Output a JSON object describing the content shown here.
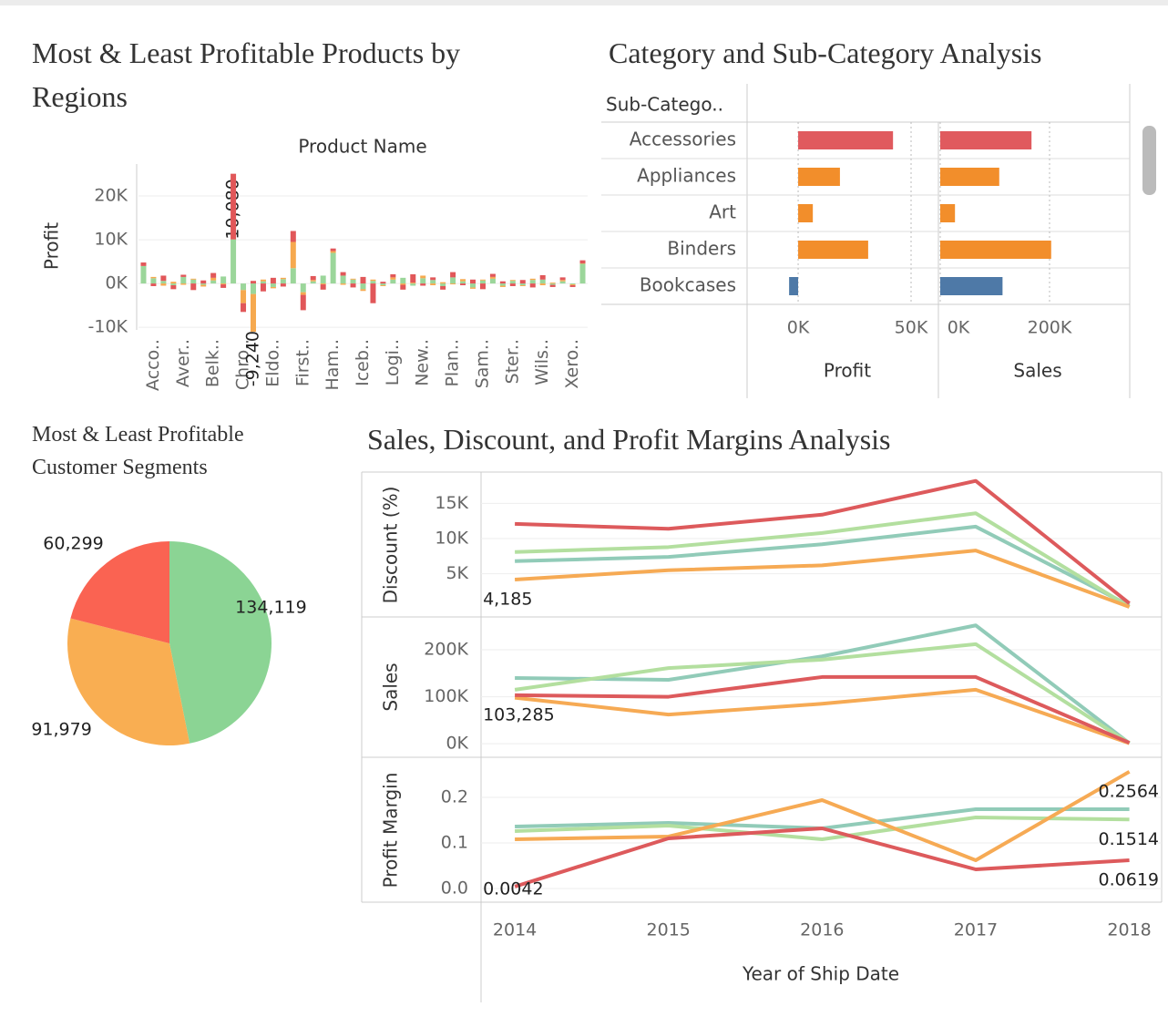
{
  "chart_data": [
    {
      "type": "bar",
      "stacked": true,
      "title": "Most & Least Profitable Products by Regions",
      "x_header": "Product Name",
      "ylabel": "Profit",
      "categories": [
        null,
        "Acco..",
        null,
        null,
        "Aver..",
        null,
        null,
        "Belk..",
        null,
        null,
        "Chro..",
        null,
        null,
        "Eldo..",
        null,
        null,
        "First..",
        null,
        null,
        "Ham..",
        null,
        null,
        "Iceb..",
        null,
        null,
        "Logi..",
        null,
        null,
        "New..",
        null,
        null,
        "Plan..",
        null,
        null,
        "Sam..",
        null,
        null,
        "Ster..",
        null,
        null,
        "Wils..",
        null,
        null,
        "Xero..",
        null
      ],
      "series": [
        {
          "color": "#9bd69a",
          "values": [
            4000,
            1200,
            600,
            -400,
            1500,
            900,
            -300,
            700,
            1600,
            10080,
            -1500,
            -2400,
            500,
            -800,
            1000,
            3500,
            -2000,
            500,
            1800,
            7000,
            1800,
            900,
            -1300,
            600,
            -400,
            900,
            1300,
            -500,
            1200,
            800,
            -600,
            1400,
            500,
            -900,
            700,
            1100,
            -500,
            600,
            -400,
            800,
            900,
            -300,
            500,
            -200,
            4500
          ],
          "value_labels": [
            null,
            null,
            null,
            null,
            null,
            null,
            null,
            null,
            null,
            "10,080",
            null,
            null,
            null,
            null,
            null,
            null,
            null,
            null,
            null,
            null,
            null,
            null,
            null,
            null,
            null,
            null,
            null,
            null,
            null,
            null,
            null,
            null,
            null,
            null,
            null,
            null,
            null,
            null,
            null,
            null,
            null,
            null,
            null,
            null,
            null
          ]
        },
        {
          "color": "#f6a94f",
          "values": [
            0,
            300,
            -500,
            400,
            -300,
            200,
            -400,
            600,
            -200,
            0,
            -3000,
            -9240,
            400,
            -300,
            300,
            6000,
            -600,
            300,
            -200,
            400,
            -300,
            200,
            -400,
            300,
            -200,
            500,
            -300,
            200,
            600,
            -400,
            300,
            -200,
            500,
            -300,
            200,
            400,
            -300,
            200,
            -200,
            300,
            -400,
            200,
            300,
            -200,
            100
          ],
          "value_labels": [
            null,
            null,
            null,
            null,
            null,
            null,
            null,
            null,
            null,
            null,
            null,
            "-9,240",
            null,
            null,
            null,
            null,
            null,
            null,
            null,
            null,
            null,
            null,
            null,
            null,
            null,
            null,
            null,
            null,
            null,
            null,
            null,
            null,
            null,
            null,
            null,
            null,
            null,
            null,
            null,
            null,
            null,
            null,
            null,
            null,
            null
          ]
        },
        {
          "color": "#e15759",
          "values": [
            800,
            -600,
            1200,
            -900,
            500,
            -1500,
            700,
            1100,
            -800,
            15000,
            -2000,
            600,
            -1800,
            1300,
            -700,
            2500,
            -3500,
            900,
            -1200,
            600,
            800,
            -900,
            1500,
            -4500,
            400,
            700,
            -1100,
            1900,
            -500,
            600,
            -800,
            1200,
            -400,
            900,
            -1300,
            700,
            500,
            -600,
            800,
            -900,
            1000,
            -500,
            600,
            -400,
            700
          ]
        }
      ],
      "ylim": [
        -10600,
        27300
      ],
      "yticks": [
        {
          "value": -10000,
          "label": "-10K"
        },
        {
          "value": 0,
          "label": "0K"
        },
        {
          "value": 10000,
          "label": "10K"
        },
        {
          "value": 20000,
          "label": "20K"
        }
      ],
      "grid": true
    },
    {
      "type": "hbar",
      "title": "Category and Sub-Category Analysis",
      "row_header": "Sub-Catego..",
      "categories": [
        "Accessories",
        "Appliances",
        "Art",
        "Binders",
        "Bookcases"
      ],
      "colors": [
        "#e05a5e",
        "#f28e2b",
        "#f28e2b",
        "#f28e2b",
        "#4e79a7"
      ],
      "panels": [
        {
          "xlabel": "Profit",
          "values": [
            42000,
            18500,
            6500,
            31000,
            -4000
          ],
          "xlim": [
            -21800,
            62100
          ],
          "xticks": [
            {
              "value": 0,
              "label": "0K"
            },
            {
              "value": 50000,
              "label": "50K"
            }
          ]
        },
        {
          "xlabel": "Sales",
          "values": [
            167000,
            108000,
            27000,
            203000,
            114000
          ],
          "xlim": [
            -3300,
            346700
          ],
          "xticks": [
            {
              "value": 0,
              "label": "0K"
            },
            {
              "value": 200000,
              "label": "200K"
            }
          ]
        }
      ]
    },
    {
      "type": "pie",
      "title": "Most & Least Profitable Customer Segments",
      "values": [
        134119,
        91979,
        60299
      ],
      "value_labels": [
        "134,119",
        "91,979",
        "60,299"
      ],
      "colors": [
        "#8bd494",
        "#f9ae52",
        "#fa6352"
      ]
    },
    {
      "type": "line",
      "title": "Sales, Discount, and Profit Margins Analysis",
      "x": [
        2014,
        2015,
        2016,
        2017,
        2018
      ],
      "xlim": [
        2013.78,
        2018.21
      ],
      "xticks": [
        2014,
        2015,
        2016,
        2017,
        2018
      ],
      "xlabel": "Year of Ship Date",
      "panels": [
        {
          "ylabel": "Discount (%)",
          "ylim": [
            -1000,
            19200
          ],
          "yticks": [
            {
              "value": 5000,
              "label": "5K"
            },
            {
              "value": 10000,
              "label": "10K"
            },
            {
              "value": 15000,
              "label": "15K"
            }
          ],
          "series": [
            {
              "color": "#91cbb8",
              "values": [
                6800,
                7400,
                9200,
                11700,
                500
              ]
            },
            {
              "color": "#b3df9f",
              "values": [
                8100,
                8800,
                10800,
                13600,
                300
              ]
            },
            {
              "color": "#f6aa54",
              "values": [
                4185,
                5500,
                6200,
                8300,
                300
              ],
              "value_labels": [
                "4,185",
                null,
                null,
                null,
                null
              ]
            },
            {
              "color": "#dd5a5c",
              "values": [
                12100,
                11400,
                13400,
                18200,
                800
              ]
            }
          ]
        },
        {
          "ylabel": "Sales",
          "ylim": [
            -27000,
            268000
          ],
          "yticks": [
            {
              "value": 0,
              "label": "0K"
            },
            {
              "value": 100000,
              "label": "100K"
            },
            {
              "value": 200000,
              "label": "200K"
            }
          ],
          "series": [
            {
              "color": "#91cbb8",
              "values": [
                140000,
                136000,
                186000,
                252000,
                1000
              ]
            },
            {
              "color": "#b3df9f",
              "values": [
                115000,
                161000,
                179000,
                212000,
                1000
              ]
            },
            {
              "color": "#f6aa54",
              "values": [
                98000,
                62000,
                85000,
                115000,
                1000
              ]
            },
            {
              "color": "#dd5a5c",
              "values": [
                103285,
                100000,
                142000,
                142000,
                2000
              ],
              "value_labels": [
                "103,285",
                null,
                null,
                null,
                null
              ]
            }
          ]
        },
        {
          "ylabel": "Profit Margin",
          "ylim": [
            -0.03,
            0.286
          ],
          "yticks": [
            {
              "value": 0,
              "label": "0.0"
            },
            0.1,
            0.2
          ],
          "series": [
            {
              "color": "#91cbb8",
              "values": [
                0.136,
                0.144,
                0.132,
                0.174,
                0.174
              ]
            },
            {
              "color": "#b3df9f",
              "values": [
                0.126,
                0.138,
                0.108,
                0.156,
                0.1514
              ],
              "value_labels": [
                null,
                null,
                null,
                null,
                "0.1514"
              ]
            },
            {
              "color": "#f6aa54",
              "values": [
                0.108,
                0.114,
                0.194,
                0.062,
                0.2564
              ],
              "value_labels": [
                null,
                null,
                null,
                null,
                "0.2564"
              ]
            },
            {
              "color": "#dd5a5c",
              "values": [
                0.0042,
                0.11,
                0.132,
                0.042,
                0.0619
              ],
              "value_labels": [
                "0.0042",
                null,
                null,
                null,
                "0.0619"
              ]
            }
          ]
        }
      ]
    }
  ]
}
